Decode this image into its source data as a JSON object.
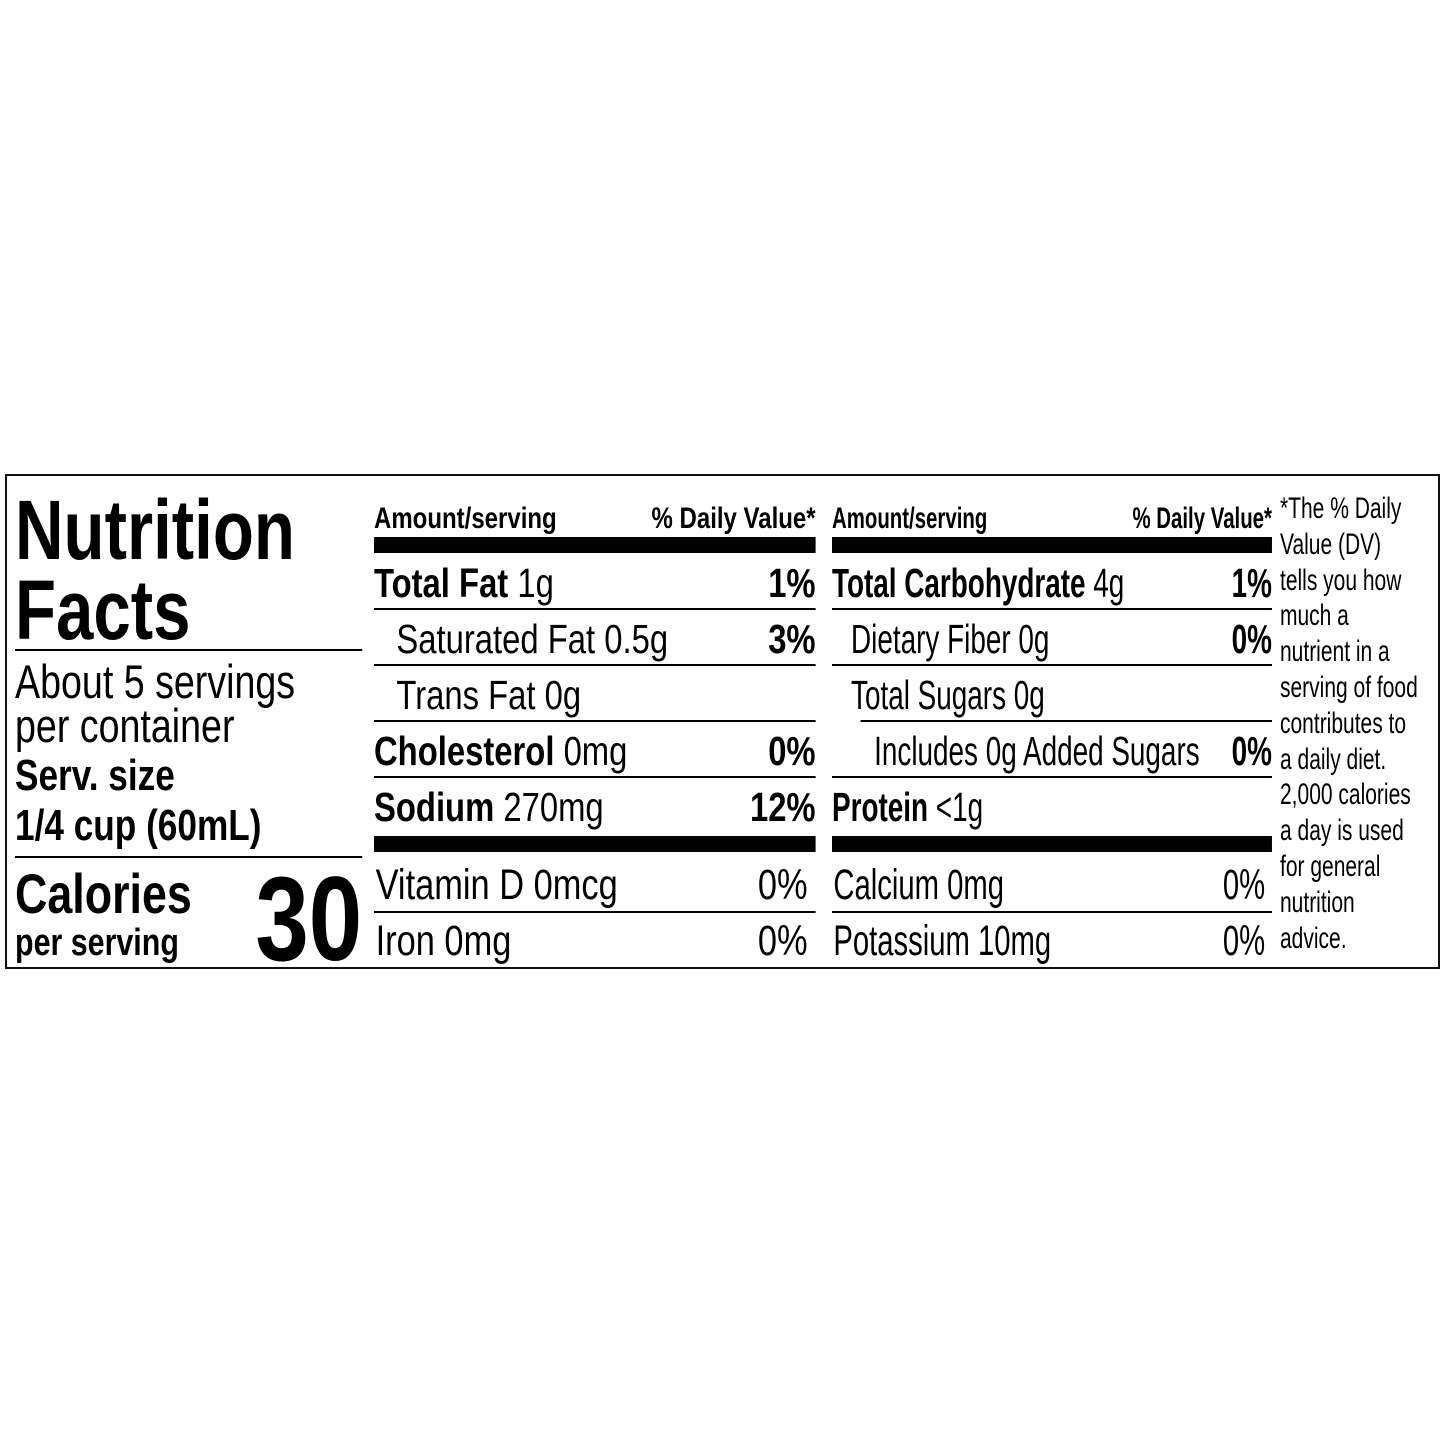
{
  "title_line1": "Nutrition",
  "title_line2": "Facts",
  "servings_line1": "About 5 servings",
  "servings_line2": "per container",
  "serv_size_label": "Serv. size",
  "serv_size_value": "1/4 cup (60mL)",
  "calories_label": "Calories",
  "calories_sub": "per serving",
  "calories_value": "30",
  "header": {
    "amount": "Amount/serving",
    "dv": "% Daily Value*"
  },
  "col1": [
    {
      "name": "Total Fat",
      "amount": "1g",
      "dv": "1%",
      "bold": true
    },
    {
      "name": "Saturated Fat",
      "amount": "0.5g",
      "dv": "3%",
      "bold": false
    },
    {
      "name": "Trans Fat",
      "amount": "0g",
      "dv": "",
      "bold": false
    },
    {
      "name": "Cholesterol",
      "amount": "0mg",
      "dv": "0%",
      "bold": true
    },
    {
      "name": "Sodium",
      "amount": "270mg",
      "dv": "12%",
      "bold": true
    }
  ],
  "col2": [
    {
      "name": "Total Carbohydrate",
      "amount": "4g",
      "dv": "1%",
      "bold": true
    },
    {
      "name": "Dietary Fiber",
      "amount": "0g",
      "dv": "0%",
      "bold": false
    },
    {
      "name": "Total Sugars",
      "amount": "0g",
      "dv": "",
      "bold": false
    },
    {
      "name": "Includes 0g Added Sugars",
      "amount": "",
      "dv": "0%",
      "bold": false
    },
    {
      "name": "Protein",
      "amount": "<1g",
      "dv": "",
      "bold": true
    }
  ],
  "vitamins1": [
    {
      "label": "Vitamin D 0mcg",
      "dv": "0%"
    },
    {
      "label": "Iron 0mg",
      "dv": "0%"
    }
  ],
  "vitamins2": [
    {
      "label": "Calcium 0mg",
      "dv": "0%"
    },
    {
      "label": "Potassium 10mg",
      "dv": "0%"
    }
  ],
  "footnote": [
    "*The % Daily",
    "Value (DV)",
    "tells you how",
    "much a",
    "nutrient in a",
    "serving of food",
    "contributes to",
    "a daily diet.",
    "2,000 calories",
    "a day is used",
    "for general",
    "nutrition",
    "advice."
  ]
}
